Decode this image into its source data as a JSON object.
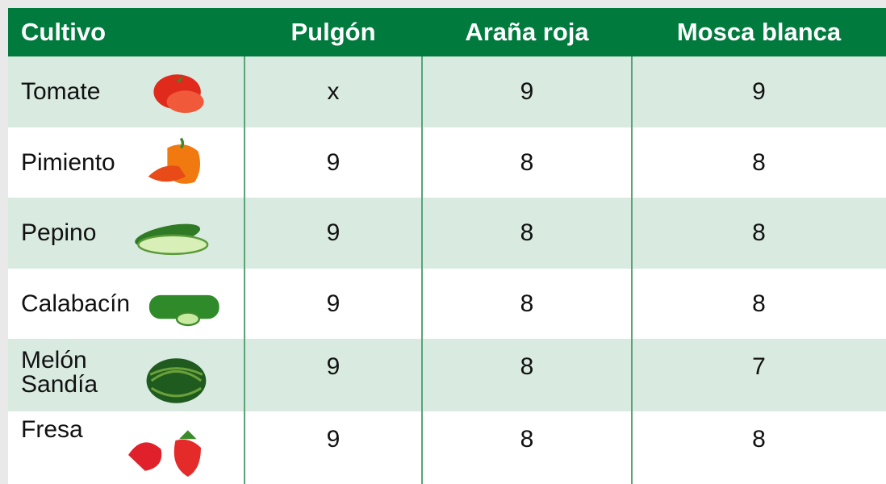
{
  "table": {
    "header": [
      "Cultivo",
      "Pulgón",
      "Araña roja",
      "Mosca blanca"
    ],
    "rows": [
      {
        "cultivo": [
          "Tomate"
        ],
        "values": [
          "x",
          9,
          9
        ]
      },
      {
        "cultivo": [
          "Pimiento"
        ],
        "values": [
          9,
          8,
          8
        ]
      },
      {
        "cultivo": [
          "Pepino"
        ],
        "values": [
          9,
          8,
          8
        ]
      },
      {
        "cultivo": [
          "Calabacín"
        ],
        "values": [
          9,
          8,
          8
        ]
      },
      {
        "cultivo": [
          "Melón",
          "Sandía"
        ],
        "values": [
          9,
          8,
          7
        ]
      },
      {
        "cultivo": [
          "Fresa"
        ],
        "values": [
          9,
          8,
          8
        ]
      }
    ]
  }
}
